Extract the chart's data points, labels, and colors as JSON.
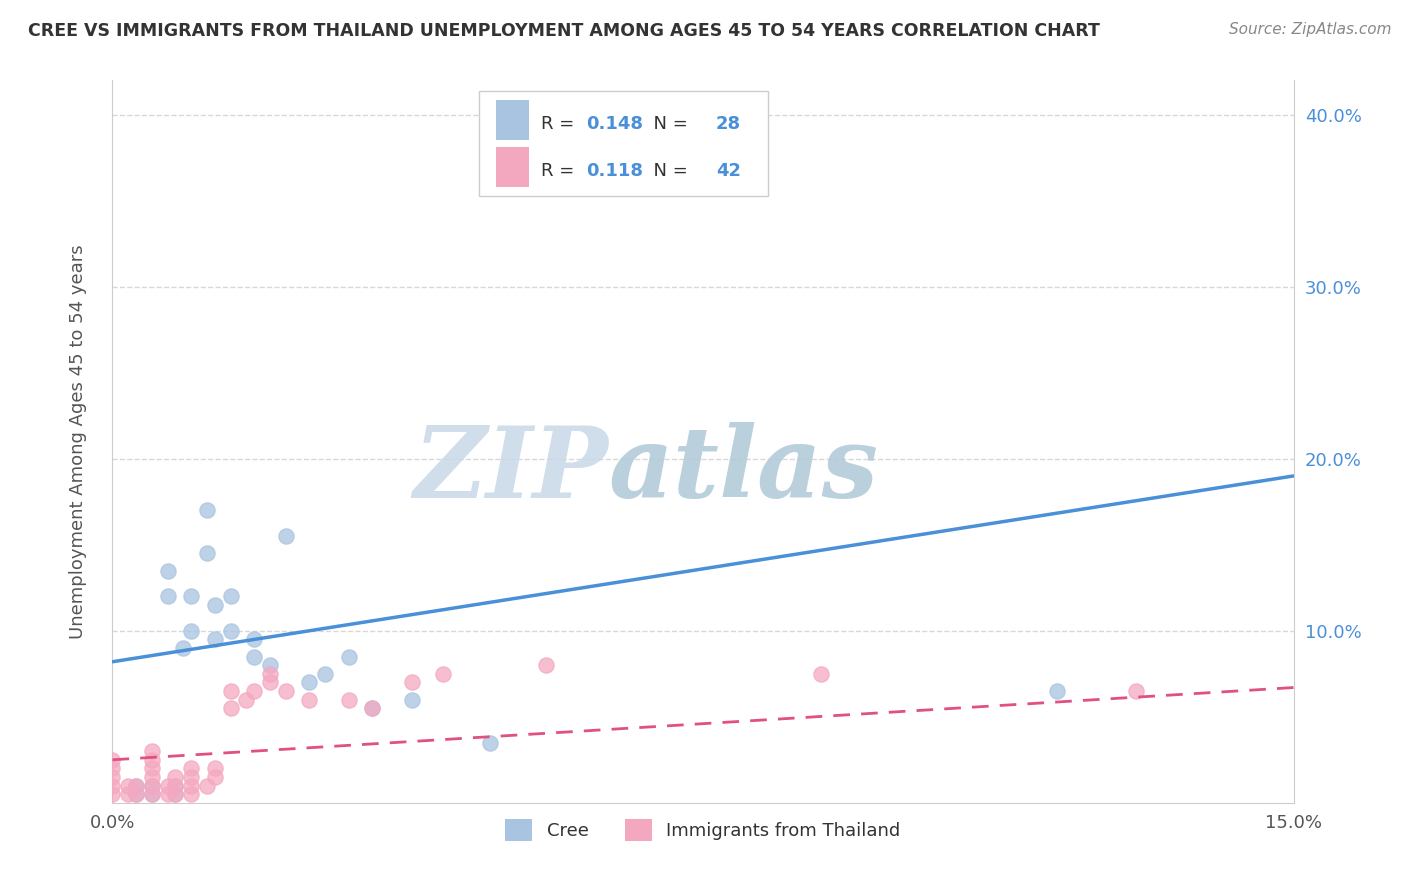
{
  "title": "CREE VS IMMIGRANTS FROM THAILAND UNEMPLOYMENT AMONG AGES 45 TO 54 YEARS CORRELATION CHART",
  "source": "Source: ZipAtlas.com",
  "ylabel": "Unemployment Among Ages 45 to 54 years",
  "xlabel_cree": "Cree",
  "xlabel_thai": "Immigrants from Thailand",
  "xlim": [
    0.0,
    0.15
  ],
  "ylim": [
    0.0,
    0.42
  ],
  "cree_R": 0.148,
  "cree_N": 28,
  "thai_R": 0.118,
  "thai_N": 42,
  "cree_color": "#a8c4e0",
  "cree_line_color": "#4a90d9",
  "thai_color": "#f4a8c0",
  "thai_line_color": "#e05080",
  "watermark_zip": "ZIP",
  "watermark_atlas": "atlas",
  "watermark_color_zip": "#c8d8e8",
  "watermark_color_atlas": "#b0c8d8",
  "cree_scatter_x": [
    0.003,
    0.003,
    0.005,
    0.005,
    0.007,
    0.007,
    0.008,
    0.008,
    0.009,
    0.01,
    0.01,
    0.012,
    0.012,
    0.013,
    0.013,
    0.015,
    0.015,
    0.018,
    0.018,
    0.02,
    0.022,
    0.025,
    0.027,
    0.03,
    0.033,
    0.038,
    0.048,
    0.12
  ],
  "cree_scatter_y": [
    0.005,
    0.01,
    0.005,
    0.01,
    0.12,
    0.135,
    0.005,
    0.01,
    0.09,
    0.1,
    0.12,
    0.145,
    0.17,
    0.095,
    0.115,
    0.1,
    0.12,
    0.085,
    0.095,
    0.08,
    0.155,
    0.07,
    0.075,
    0.085,
    0.055,
    0.06,
    0.035,
    0.065
  ],
  "thai_scatter_x": [
    0.0,
    0.0,
    0.0,
    0.0,
    0.0,
    0.002,
    0.002,
    0.003,
    0.003,
    0.005,
    0.005,
    0.005,
    0.005,
    0.005,
    0.005,
    0.007,
    0.007,
    0.008,
    0.008,
    0.008,
    0.01,
    0.01,
    0.01,
    0.01,
    0.012,
    0.013,
    0.013,
    0.015,
    0.015,
    0.017,
    0.018,
    0.02,
    0.02,
    0.022,
    0.025,
    0.03,
    0.033,
    0.038,
    0.042,
    0.055,
    0.09,
    0.13
  ],
  "thai_scatter_y": [
    0.005,
    0.01,
    0.015,
    0.02,
    0.025,
    0.005,
    0.01,
    0.005,
    0.01,
    0.005,
    0.01,
    0.015,
    0.02,
    0.025,
    0.03,
    0.005,
    0.01,
    0.005,
    0.01,
    0.015,
    0.005,
    0.01,
    0.015,
    0.02,
    0.01,
    0.015,
    0.02,
    0.055,
    0.065,
    0.06,
    0.065,
    0.07,
    0.075,
    0.065,
    0.06,
    0.06,
    0.055,
    0.07,
    0.075,
    0.08,
    0.075,
    0.065
  ],
  "background_color": "#ffffff",
  "grid_color": "#d8d8d8",
  "cree_line_intercept": 0.082,
  "cree_line_slope": 0.72,
  "thai_line_intercept": 0.025,
  "thai_line_slope": 0.28
}
